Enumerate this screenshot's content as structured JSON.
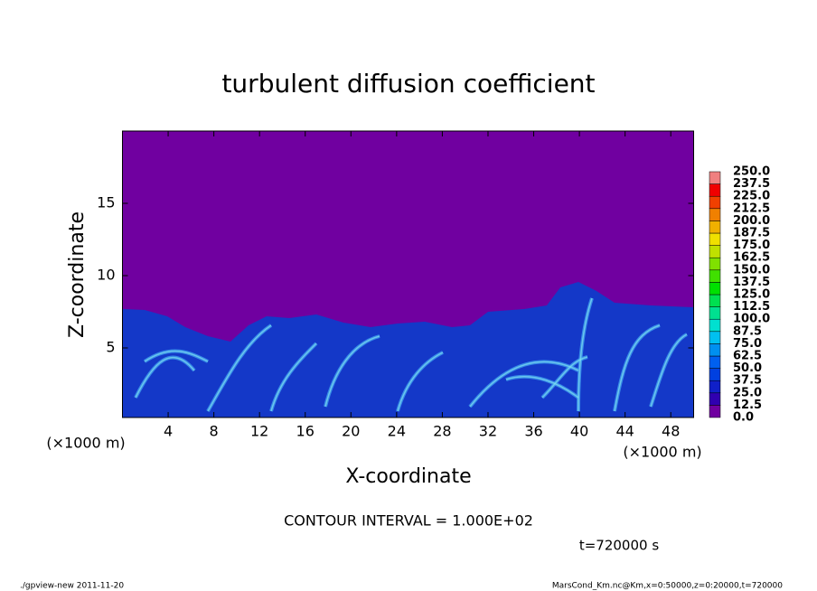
{
  "chart_data": {
    "type": "contour",
    "title": "turbulent diffusion coefficient",
    "xlabel": "X-coordinate",
    "ylabel": "Z-coordinate",
    "x_unit": "(×1000 m)",
    "x_unit_right": "(×1000 m)",
    "xlim": [
      0,
      50
    ],
    "ylim": [
      0,
      20
    ],
    "xticks": [
      4,
      8,
      12,
      16,
      20,
      24,
      28,
      32,
      36,
      40,
      44,
      48
    ],
    "yticks": [
      5,
      10,
      15
    ],
    "colorbar": {
      "levels": [
        {
          "value": 0,
          "label": "0.0"
        },
        {
          "value": 12.5,
          "label": "12.5"
        },
        {
          "value": 25,
          "label": "25.0"
        },
        {
          "value": 37.5,
          "label": "37.5"
        },
        {
          "value": 50,
          "label": "50.0"
        },
        {
          "value": 62.5,
          "label": "62.5"
        },
        {
          "value": 75,
          "label": "75.0"
        },
        {
          "value": 87.5,
          "label": "87.5"
        },
        {
          "value": 100,
          "label": "100.0"
        },
        {
          "value": 112.5,
          "label": "112.5"
        },
        {
          "value": 125,
          "label": "125.0"
        },
        {
          "value": 137.5,
          "label": "137.5"
        },
        {
          "value": 150,
          "label": "150.0"
        },
        {
          "value": 162.5,
          "label": "162.5"
        },
        {
          "value": 175,
          "label": "175.0"
        },
        {
          "value": 187.5,
          "label": "187.5"
        },
        {
          "value": 200,
          "label": "200.0"
        },
        {
          "value": 212.5,
          "label": "212.5"
        },
        {
          "value": 225,
          "label": "225.0"
        },
        {
          "value": 237.5,
          "label": "237.5"
        },
        {
          "value": 250,
          "label": "250.0"
        }
      ],
      "colors": [
        "#7000a0",
        "#3000b0",
        "#1020c8",
        "#0040e0",
        "#0060f0",
        "#0090f0",
        "#00c0f0",
        "#00e0d0",
        "#00e090",
        "#00e050",
        "#00e000",
        "#40e000",
        "#80e000",
        "#c0e000",
        "#f0e000",
        "#f0b000",
        "#f08000",
        "#f04000",
        "#f00000",
        "#f08080"
      ]
    },
    "annotations": {
      "contour_interval": "CONTOUR INTERVAL = 1.000E+02",
      "time": "t=720000 s",
      "program": "./gpview-new  2011-11-20",
      "source": "MarsCond_Km.nc@Km,x=0:50000,z=0:20000,t=720000"
    }
  }
}
